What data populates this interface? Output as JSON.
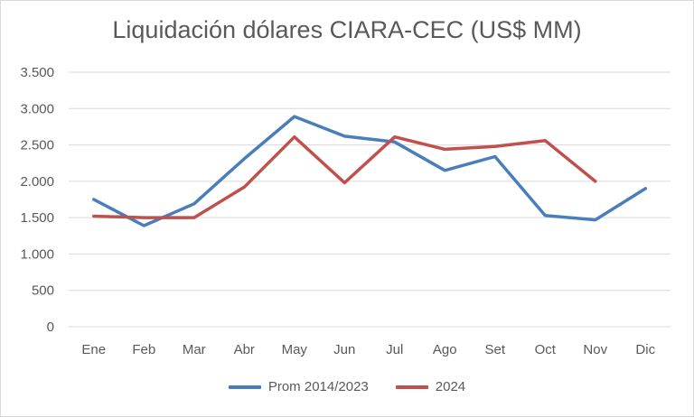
{
  "chart_data": {
    "type": "line",
    "title": "Liquidación dólares CIARA-CEC (US$ MM)",
    "categories": [
      "Ene",
      "Feb",
      "Mar",
      "Abr",
      "May",
      "Jun",
      "Jul",
      "Ago",
      "Set",
      "Oct",
      "Nov",
      "Dic"
    ],
    "y_tick_labels": [
      "0",
      "500",
      "1.000",
      "1.500",
      "2.000",
      "2.500",
      "3.000",
      "3.500"
    ],
    "y_ticks": [
      0,
      500,
      1000,
      1500,
      2000,
      2500,
      3000,
      3500
    ],
    "ylim": [
      0,
      3500
    ],
    "grid": true,
    "legend_position": "bottom",
    "series": [
      {
        "name": "Prom 2014/2023",
        "color": "#4a7ebb",
        "values": [
          1750,
          1390,
          1690,
          2310,
          2890,
          2620,
          2540,
          2150,
          2340,
          1530,
          1470,
          1900
        ]
      },
      {
        "name": "2024",
        "color": "#c0504d",
        "values": [
          1520,
          1500,
          1500,
          1920,
          2610,
          1980,
          2610,
          2440,
          2480,
          2560,
          2000,
          null
        ]
      }
    ]
  }
}
